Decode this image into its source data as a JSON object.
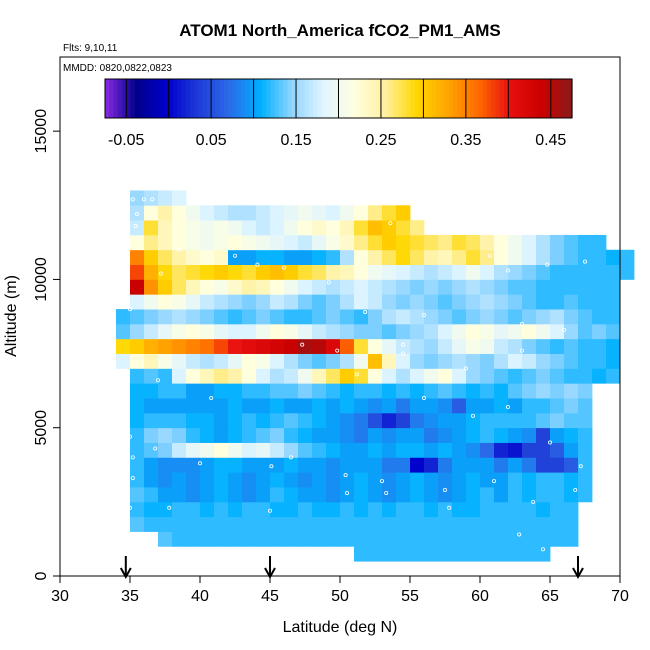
{
  "chart_data": {
    "type": "heatmap",
    "title": "ATOM1 North_America fCO2_PM1_AMS",
    "flights_label": "Flts: 9,10,11",
    "mmdd_label": "MMDD: 0820,0822,0823",
    "xlabel": "Latitude (deg N)",
    "ylabel": "Altitude (m)",
    "xlim": [
      30,
      70
    ],
    "ylim": [
      0,
      17500
    ],
    "x_ticks": [
      "30",
      "35",
      "40",
      "45",
      "50",
      "55",
      "60",
      "65",
      "70"
    ],
    "y_ticks": [
      "0",
      "5000",
      "10000",
      "15000"
    ],
    "colorbar": {
      "range": [
        -0.075,
        0.475
      ],
      "tick_values": [
        -0.05,
        0.05,
        0.15,
        0.25,
        0.35,
        0.45
      ],
      "tick_labels": [
        "-0.05",
        "0.05",
        "0.15",
        "0.25",
        "0.35",
        "0.45"
      ],
      "colors": [
        "#8a2be2",
        "#00008b",
        "#0000cd",
        "#1e3cd7",
        "#2b6be8",
        "#00b0ff",
        "#8fd4ff",
        "#e0f5ff",
        "#ffffe0",
        "#fff0a0",
        "#ffd700",
        "#ffa500",
        "#ff6a00",
        "#e81010",
        "#cc0000",
        "#8b1a1a"
      ]
    },
    "arrow_latitudes": [
      34.7,
      45.0,
      67.0
    ],
    "grid": false,
    "legend": "colorbar top",
    "cell_lat_width": 1.0,
    "cell_alt_height": 500,
    "rows": [
      {
        "alt": 750,
        "lat_start": 51,
        "values": [
          0.12,
          0.12,
          0.12,
          0.12,
          0.12,
          0.12,
          0.12,
          0.12,
          0.12,
          0.12,
          0.12,
          0.12,
          0.12,
          0.12
        ]
      },
      {
        "alt": 1250,
        "lat_start": 37,
        "values": [
          0.13,
          0.12,
          0.12,
          0.12,
          0.12,
          0.12,
          0.12,
          0.12,
          0.12,
          0.12,
          0.12,
          0.12,
          0.12,
          0.12,
          0.12,
          0.12,
          0.12,
          0.12,
          0.12,
          0.12,
          0.12,
          0.12,
          0.12,
          0.12,
          0.12,
          0.12,
          0.12,
          0.12,
          0.12,
          0.12
        ]
      },
      {
        "alt": 1750,
        "lat_start": 35,
        "values": [
          0.13,
          0.12,
          0.12,
          0.12,
          0.12,
          0.12,
          0.12,
          0.12,
          0.12,
          0.12,
          0.12,
          0.12,
          0.12,
          0.12,
          0.12,
          0.12,
          0.12,
          0.12,
          0.12,
          0.12,
          0.12,
          0.12,
          0.12,
          0.12,
          0.12,
          0.12,
          0.12,
          0.12,
          0.12,
          0.12,
          0.12,
          0.12
        ]
      },
      {
        "alt": 2250,
        "lat_start": 35,
        "values": [
          0.12,
          0.11,
          0.11,
          0.12,
          0.12,
          0.11,
          0.12,
          0.11,
          0.12,
          0.12,
          0.11,
          0.11,
          0.12,
          0.11,
          0.11,
          0.12,
          0.11,
          0.12,
          0.11,
          0.12,
          0.12,
          0.11,
          0.12,
          0.11,
          0.11,
          0.12,
          0.12,
          0.12,
          0.12,
          0.11,
          0.12,
          0.12
        ]
      },
      {
        "alt": 2750,
        "lat_start": 35,
        "values": [
          0.13,
          0.12,
          0.1,
          0.1,
          0.09,
          0.1,
          0.11,
          0.1,
          0.09,
          0.1,
          0.12,
          0.11,
          0.1,
          0.1,
          0.09,
          0.1,
          0.11,
          0.1,
          0.09,
          0.1,
          0.11,
          0.1,
          0.09,
          0.1,
          0.11,
          0.12,
          0.1,
          0.12,
          0.11,
          0.12,
          0.12,
          0.11,
          0.12
        ]
      },
      {
        "alt": 3250,
        "lat_start": 35,
        "values": [
          0.12,
          0.1,
          0.09,
          0.1,
          0.09,
          0.1,
          0.11,
          0.1,
          0.09,
          0.1,
          0.11,
          0.1,
          0.09,
          0.1,
          0.09,
          0.1,
          0.11,
          0.1,
          0.09,
          0.1,
          0.11,
          0.1,
          0.09,
          0.1,
          0.11,
          0.1,
          0.1,
          0.12,
          0.11,
          0.12,
          0.12,
          0.11,
          0.12
        ]
      },
      {
        "alt": 3750,
        "lat_start": 35,
        "values": [
          0.12,
          0.1,
          0.09,
          0.09,
          0.09,
          0.1,
          0.11,
          0.11,
          0.1,
          0.1,
          0.1,
          0.11,
          0.1,
          0.1,
          0.09,
          0.1,
          0.1,
          0.1,
          0.08,
          0.08,
          0.0,
          0.02,
          0.08,
          0.1,
          0.1,
          0.1,
          0.08,
          0.1,
          0.08,
          0.04,
          0.04,
          0.06,
          0.12
        ]
      },
      {
        "alt": 4250,
        "lat_start": 35,
        "values": [
          0.12,
          0.13,
          0.14,
          0.17,
          0.19,
          0.2,
          0.22,
          0.2,
          0.18,
          0.19,
          0.17,
          0.15,
          0.13,
          0.12,
          0.11,
          0.1,
          0.1,
          0.11,
          0.1,
          0.11,
          0.11,
          0.1,
          0.11,
          0.1,
          0.09,
          0.07,
          0.02,
          0.01,
          0.04,
          0.04,
          0.06,
          0.1,
          0.12
        ]
      },
      {
        "alt": 4750,
        "lat_start": 35,
        "values": [
          0.12,
          0.14,
          0.15,
          0.14,
          0.12,
          0.11,
          0.1,
          0.11,
          0.12,
          0.13,
          0.14,
          0.12,
          0.11,
          0.1,
          0.1,
          0.09,
          0.08,
          0.1,
          0.09,
          0.1,
          0.1,
          0.08,
          0.09,
          0.1,
          0.11,
          0.12,
          0.11,
          0.1,
          0.09,
          0.04,
          0.1,
          0.11,
          0.12
        ]
      },
      {
        "alt": 5250,
        "lat_start": 35,
        "values": [
          0.11,
          0.12,
          0.12,
          0.12,
          0.11,
          0.11,
          0.1,
          0.11,
          0.12,
          0.11,
          0.12,
          0.13,
          0.12,
          0.11,
          0.1,
          0.09,
          0.08,
          0.05,
          0.02,
          0.04,
          0.08,
          0.09,
          0.1,
          0.1,
          0.11,
          0.12,
          0.12,
          0.12,
          0.12,
          0.13,
          0.14,
          0.13,
          0.13
        ]
      },
      {
        "alt": 5750,
        "lat_start": 35,
        "values": [
          0.11,
          0.1,
          0.1,
          0.1,
          0.1,
          0.1,
          0.1,
          0.11,
          0.1,
          0.1,
          0.11,
          0.1,
          0.1,
          0.11,
          0.1,
          0.11,
          0.1,
          0.09,
          0.1,
          0.08,
          0.1,
          0.1,
          0.09,
          0.06,
          0.1,
          0.1,
          0.11,
          0.1,
          0.12,
          0.12,
          0.13,
          0.14,
          0.13
        ]
      },
      {
        "alt": 6250,
        "lat_start": 35,
        "values": [
          0.11,
          0.11,
          0.12,
          0.12,
          0.1,
          0.1,
          0.11,
          0.11,
          0.12,
          0.12,
          0.13,
          0.13,
          0.14,
          0.13,
          0.12,
          0.11,
          0.12,
          0.12,
          0.11,
          0.12,
          0.11,
          0.12,
          0.13,
          0.12,
          0.11,
          0.12,
          0.11,
          0.13,
          0.14,
          0.15,
          0.14,
          0.15,
          0.14
        ]
      },
      {
        "alt": 6750,
        "lat_start": 35,
        "values": [
          0.12,
          0.13,
          0.12,
          0.18,
          0.22,
          0.24,
          0.26,
          0.25,
          0.22,
          0.18,
          0.16,
          0.17,
          0.2,
          0.24,
          0.27,
          0.3,
          0.28,
          0.22,
          0.18,
          0.16,
          0.18,
          0.2,
          0.22,
          0.18,
          0.15,
          0.14,
          0.13,
          0.12,
          0.13,
          0.14,
          0.13,
          0.12,
          0.12,
          0.11,
          0.12
        ]
      },
      {
        "alt": 7250,
        "lat_start": 34,
        "values": [
          0.18,
          0.22,
          0.24,
          0.21,
          0.19,
          0.17,
          0.16,
          0.17,
          0.19,
          0.22,
          0.21,
          0.18,
          0.16,
          0.14,
          0.13,
          0.14,
          0.16,
          0.2,
          0.31,
          0.24,
          0.18,
          0.15,
          0.14,
          0.15,
          0.16,
          0.15,
          0.14,
          0.16,
          0.18,
          0.17,
          0.15,
          0.14,
          0.13,
          0.12,
          0.12,
          0.11
        ]
      },
      {
        "alt": 7750,
        "lat_start": 34,
        "values": [
          0.29,
          0.3,
          0.32,
          0.33,
          0.34,
          0.35,
          0.36,
          0.38,
          0.4,
          0.41,
          0.42,
          0.43,
          0.44,
          0.46,
          0.45,
          0.42,
          0.37,
          0.28,
          0.22,
          0.19,
          0.17,
          0.16,
          0.15,
          0.17,
          0.19,
          0.21,
          0.2,
          0.17,
          0.16,
          0.14,
          0.13,
          0.12,
          0.13,
          0.12,
          0.12,
          0.11
        ]
      },
      {
        "alt": 8250,
        "lat_start": 34,
        "values": [
          0.13,
          0.15,
          0.17,
          0.19,
          0.21,
          0.22,
          0.21,
          0.19,
          0.18,
          0.18,
          0.2,
          0.22,
          0.21,
          0.19,
          0.17,
          0.16,
          0.15,
          0.14,
          0.14,
          0.13,
          0.14,
          0.15,
          0.16,
          0.18,
          0.2,
          0.22,
          0.21,
          0.19,
          0.2,
          0.22,
          0.2,
          0.18,
          0.15,
          0.13,
          0.14,
          0.13
        ]
      },
      {
        "alt": 8750,
        "lat_start": 34,
        "values": [
          0.12,
          0.13,
          0.14,
          0.15,
          0.16,
          0.15,
          0.14,
          0.13,
          0.12,
          0.13,
          0.14,
          0.13,
          0.12,
          0.12,
          0.13,
          0.14,
          0.13,
          0.12,
          0.14,
          0.16,
          0.17,
          0.16,
          0.15,
          0.14,
          0.13,
          0.14,
          0.15,
          0.14,
          0.13,
          0.14,
          0.15,
          0.16,
          0.14,
          0.13,
          0.12,
          0.12
        ]
      },
      {
        "alt": 9250,
        "lat_start": 35,
        "values": [
          0.18,
          0.2,
          0.22,
          0.21,
          0.19,
          0.17,
          0.16,
          0.15,
          0.14,
          0.15,
          0.17,
          0.16,
          0.14,
          0.13,
          0.14,
          0.16,
          0.18,
          0.17,
          0.15,
          0.14,
          0.15,
          0.14,
          0.13,
          0.14,
          0.15,
          0.16,
          0.15,
          0.14,
          0.13,
          0.12,
          0.12,
          0.13,
          0.12,
          0.12,
          0.12
        ]
      },
      {
        "alt": 9750,
        "lat_start": 35,
        "values": [
          0.44,
          0.34,
          0.3,
          0.27,
          0.24,
          0.22,
          0.21,
          0.23,
          0.25,
          0.24,
          0.22,
          0.2,
          0.18,
          0.17,
          0.16,
          0.17,
          0.18,
          0.17,
          0.16,
          0.15,
          0.14,
          0.15,
          0.14,
          0.15,
          0.16,
          0.15,
          0.14,
          0.13,
          0.13,
          0.12,
          0.12,
          0.12,
          0.12,
          0.12,
          0.12
        ]
      },
      {
        "alt": 10250,
        "lat_start": 35,
        "values": [
          0.38,
          0.32,
          0.29,
          0.27,
          0.28,
          0.29,
          0.3,
          0.29,
          0.28,
          0.3,
          0.31,
          0.3,
          0.28,
          0.27,
          0.25,
          0.24,
          0.22,
          0.2,
          0.19,
          0.18,
          0.17,
          0.16,
          0.17,
          0.18,
          0.2,
          0.18,
          0.16,
          0.15,
          0.14,
          0.13,
          0.12,
          0.12,
          0.12,
          0.12,
          0.12,
          0.12
        ]
      },
      {
        "alt": 10750,
        "lat_start": 35,
        "values": [
          0.35,
          0.3,
          0.27,
          0.25,
          0.23,
          0.22,
          0.23,
          0.1,
          0.1,
          0.11,
          0.11,
          0.1,
          0.1,
          0.11,
          0.12,
          0.16,
          0.22,
          0.25,
          0.27,
          0.29,
          0.27,
          0.25,
          0.24,
          0.26,
          0.28,
          0.26,
          0.22,
          0.2,
          0.18,
          0.16,
          0.14,
          0.13,
          0.12,
          0.12,
          0.11,
          0.12
        ]
      },
      {
        "alt": 11250,
        "lat_start": 35,
        "values": [
          0.22,
          0.26,
          0.24,
          0.22,
          0.21,
          0.2,
          0.21,
          0.22,
          0.21,
          0.2,
          0.19,
          0.18,
          0.17,
          0.19,
          0.21,
          0.23,
          0.26,
          0.28,
          0.3,
          0.29,
          0.28,
          0.27,
          0.26,
          0.28,
          0.27,
          0.25,
          0.22,
          0.2,
          0.18,
          0.16,
          0.14,
          0.13,
          0.12,
          0.12
        ]
      },
      {
        "alt": 11750,
        "lat_start": 35,
        "values": [
          0.17,
          0.28,
          0.24,
          0.22,
          0.21,
          0.2,
          0.21,
          0.2,
          0.18,
          0.17,
          0.18,
          0.2,
          0.22,
          0.23,
          0.22,
          0.24,
          0.28,
          0.31,
          0.3,
          0.28,
          0.26
        ]
      },
      {
        "alt": 12250,
        "lat_start": 35,
        "values": [
          0.16,
          0.22,
          0.25,
          0.22,
          0.2,
          0.18,
          0.17,
          0.16,
          0.16,
          0.17,
          0.18,
          0.19,
          0.2,
          0.19,
          0.18,
          0.2,
          0.22,
          0.26,
          0.28,
          0.3
        ]
      },
      {
        "alt": 12750,
        "lat_start": 35,
        "values": [
          0.15,
          0.16,
          0.17,
          0.18
        ]
      }
    ],
    "data_point_markers": [
      [
        35.2,
        12700
      ],
      [
        36.0,
        12700
      ],
      [
        36.6,
        12700
      ],
      [
        35.5,
        12200
      ],
      [
        37.2,
        10200
      ],
      [
        42.5,
        10800
      ],
      [
        49.2,
        9900
      ],
      [
        51.8,
        8900
      ],
      [
        54.5,
        7800
      ],
      [
        56.0,
        8800
      ],
      [
        60.7,
        10800
      ],
      [
        62.0,
        10300
      ],
      [
        64.8,
        10500
      ],
      [
        67.5,
        10600
      ],
      [
        66.0,
        8300
      ],
      [
        63.0,
        8500
      ],
      [
        47.3,
        7800
      ],
      [
        49.8,
        7600
      ],
      [
        51.2,
        6800
      ],
      [
        54.5,
        7500
      ],
      [
        59.0,
        7000
      ],
      [
        63.0,
        7600
      ],
      [
        37.0,
        6600
      ],
      [
        40.8,
        6000
      ],
      [
        35.0,
        4700
      ],
      [
        35.2,
        4000
      ],
      [
        36.8,
        4300
      ],
      [
        40.0,
        3800
      ],
      [
        45.1,
        3700
      ],
      [
        46.5,
        4000
      ],
      [
        50.4,
        3400
      ],
      [
        50.5,
        2800
      ],
      [
        53.3,
        2800
      ],
      [
        53.0,
        3200
      ],
      [
        57.5,
        2900
      ],
      [
        57.8,
        2300
      ],
      [
        61.0,
        3200
      ],
      [
        63.8,
        2500
      ],
      [
        66.8,
        2900
      ],
      [
        67.2,
        3700
      ],
      [
        65.0,
        4500
      ],
      [
        62.0,
        5700
      ],
      [
        59.5,
        5400
      ],
      [
        56.0,
        6000
      ],
      [
        35.0,
        2300
      ],
      [
        35.2,
        3300
      ],
      [
        37.8,
        2300
      ],
      [
        45.0,
        2200
      ],
      [
        64.5,
        900
      ],
      [
        62.8,
        1400
      ],
      [
        35.0,
        9000
      ],
      [
        35.4,
        11800
      ],
      [
        38.5,
        11000
      ],
      [
        44.1,
        10500
      ],
      [
        53.6,
        11900
      ],
      [
        46.0,
        10400
      ]
    ]
  }
}
